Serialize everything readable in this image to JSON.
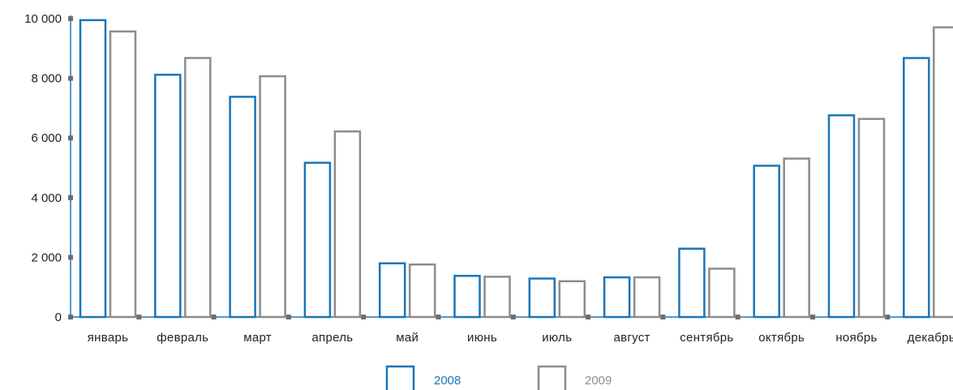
{
  "chart_data": {
    "type": "bar",
    "categories": [
      "январь",
      "февраль",
      "март",
      "апрель",
      "май",
      "июнь",
      "июль",
      "август",
      "сентябрь",
      "октябрь",
      "ноябрь",
      "декабрь"
    ],
    "series": [
      {
        "name": "2008",
        "color": "#1a75b8",
        "values": [
          9950,
          8120,
          7380,
          5170,
          1800,
          1380,
          1290,
          1330,
          2290,
          5070,
          6760,
          8680
        ]
      },
      {
        "name": "2009",
        "color": "#8c8c8c",
        "values": [
          9570,
          8680,
          8070,
          6220,
          1760,
          1350,
          1200,
          1330,
          1620,
          5310,
          6640,
          9710
        ]
      }
    ],
    "y_ticks": [
      "0",
      "2 000",
      "4 000",
      "6 000",
      "8 000",
      "10 000"
    ],
    "ylim": [
      0,
      10000
    ],
    "grid": false,
    "legend_position": "bottom-center",
    "axis_marker_color": "#6d6d6d"
  }
}
